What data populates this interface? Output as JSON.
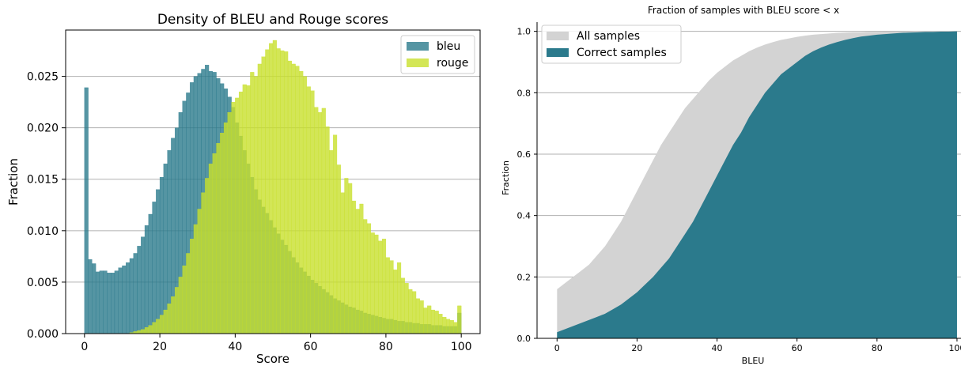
{
  "chart_data": [
    {
      "type": "bar",
      "title": "Density of BLEU and Rouge scores",
      "xlabel": "Score",
      "ylabel": "Fraction",
      "xlim": [
        -5,
        105
      ],
      "ylim": [
        0,
        0.0295
      ],
      "xticks": [
        0,
        20,
        40,
        60,
        80,
        100
      ],
      "yticks": [
        0.0,
        0.005,
        0.01,
        0.015,
        0.02,
        0.025
      ],
      "ytick_labels": [
        "0.000",
        "0.005",
        "0.010",
        "0.015",
        "0.020",
        "0.025"
      ],
      "grid": "horizontal",
      "legend_position": "top-right",
      "bin_width": 1,
      "series": [
        {
          "name": "bleu",
          "color": "#2b7a8c",
          "bin_start": 0,
          "values": [
            0.0239,
            0.0072,
            0.0068,
            0.006,
            0.0061,
            0.0061,
            0.0059,
            0.0059,
            0.0061,
            0.0064,
            0.0066,
            0.0069,
            0.0073,
            0.0078,
            0.0085,
            0.0094,
            0.0105,
            0.0116,
            0.0128,
            0.014,
            0.0152,
            0.0165,
            0.0178,
            0.019,
            0.02,
            0.0215,
            0.0226,
            0.0234,
            0.0244,
            0.025,
            0.0253,
            0.0257,
            0.0261,
            0.0255,
            0.0254,
            0.0248,
            0.0243,
            0.0238,
            0.023,
            0.022,
            0.0205,
            0.0192,
            0.0178,
            0.0165,
            0.0152,
            0.014,
            0.013,
            0.0123,
            0.0117,
            0.011,
            0.0103,
            0.0097,
            0.0091,
            0.0086,
            0.008,
            0.0074,
            0.0069,
            0.0064,
            0.006,
            0.0056,
            0.0052,
            0.0049,
            0.0046,
            0.0043,
            0.004,
            0.0037,
            0.0034,
            0.0032,
            0.003,
            0.0028,
            0.0026,
            0.0025,
            0.0023,
            0.0022,
            0.002,
            0.0019,
            0.0018,
            0.0017,
            0.0016,
            0.0015,
            0.0014,
            0.0014,
            0.0013,
            0.0012,
            0.0012,
            0.0011,
            0.0011,
            0.001,
            0.001,
            0.0009,
            0.0009,
            0.0009,
            0.0008,
            0.0008,
            0.0008,
            0.0007,
            0.0007,
            0.0007,
            0.0007,
            0.002
          ]
        },
        {
          "name": "rouge",
          "color": "#c8e02c",
          "bin_start": 0,
          "values": [
            0.0,
            0.0,
            0.0,
            0.0,
            0.0,
            0.0,
            0.0,
            0.0,
            0.0,
            0.0,
            0.0,
            0.0,
            0.0001,
            0.0002,
            0.0003,
            0.0004,
            0.0006,
            0.0008,
            0.0011,
            0.0014,
            0.0018,
            0.0023,
            0.0029,
            0.0036,
            0.0045,
            0.0055,
            0.0066,
            0.0078,
            0.0092,
            0.0106,
            0.0121,
            0.0137,
            0.0151,
            0.0165,
            0.0175,
            0.0185,
            0.0195,
            0.0205,
            0.0215,
            0.0225,
            0.0229,
            0.0235,
            0.0242,
            0.0241,
            0.0254,
            0.025,
            0.0262,
            0.0269,
            0.0276,
            0.0282,
            0.0285,
            0.0277,
            0.0275,
            0.0274,
            0.0265,
            0.0262,
            0.026,
            0.0255,
            0.025,
            0.024,
            0.0236,
            0.022,
            0.0215,
            0.0219,
            0.0201,
            0.0178,
            0.0193,
            0.0164,
            0.0137,
            0.0151,
            0.0146,
            0.0129,
            0.0121,
            0.0126,
            0.0111,
            0.0107,
            0.0098,
            0.0096,
            0.009,
            0.0092,
            0.0074,
            0.0071,
            0.0062,
            0.0069,
            0.0054,
            0.0049,
            0.0043,
            0.0041,
            0.0034,
            0.0032,
            0.0025,
            0.0027,
            0.0023,
            0.0022,
            0.0019,
            0.0016,
            0.0014,
            0.0013,
            0.0011,
            0.0027
          ]
        }
      ]
    },
    {
      "type": "area",
      "title": "Fraction of samples with BLEU score < x",
      "xlabel": "BLEU",
      "ylabel": "Fraction",
      "xlim": [
        -5,
        101
      ],
      "ylim": [
        0,
        1.03
      ],
      "xticks": [
        0,
        20,
        40,
        60,
        80,
        100
      ],
      "yticks": [
        0.0,
        0.2,
        0.4,
        0.6,
        0.8,
        1.0
      ],
      "ytick_labels": [
        "0.0",
        "0.2",
        "0.4",
        "0.6",
        "0.8",
        "1.0"
      ],
      "grid": "horizontal",
      "legend_position": "top-left",
      "series": [
        {
          "name": "All samples",
          "color": "#d3d3d3",
          "x": [
            0,
            2,
            4,
            6,
            8,
            10,
            12,
            14,
            16,
            18,
            20,
            22,
            24,
            26,
            28,
            30,
            32,
            34,
            36,
            38,
            40,
            42,
            44,
            46,
            48,
            50,
            52,
            54,
            56,
            58,
            60,
            62,
            64,
            66,
            68,
            70,
            72,
            74,
            76,
            78,
            80,
            82,
            84,
            86,
            88,
            90,
            92,
            94,
            96,
            98,
            100
          ],
          "values": [
            0.16,
            0.18,
            0.2,
            0.22,
            0.24,
            0.27,
            0.3,
            0.34,
            0.38,
            0.43,
            0.48,
            0.53,
            0.58,
            0.63,
            0.67,
            0.71,
            0.75,
            0.78,
            0.81,
            0.84,
            0.865,
            0.885,
            0.905,
            0.92,
            0.935,
            0.947,
            0.957,
            0.965,
            0.972,
            0.977,
            0.982,
            0.986,
            0.989,
            0.991,
            0.993,
            0.995,
            0.996,
            0.997,
            0.997,
            0.998,
            0.998,
            0.999,
            0.999,
            0.999,
            0.999,
            1.0,
            1.0,
            1.0,
            1.0,
            1.0,
            1.0
          ]
        },
        {
          "name": "Correct samples",
          "color": "#2b7a8c",
          "x": [
            0,
            2,
            4,
            6,
            8,
            10,
            12,
            14,
            16,
            18,
            20,
            22,
            24,
            26,
            28,
            30,
            32,
            34,
            36,
            38,
            40,
            42,
            44,
            46,
            48,
            50,
            52,
            54,
            56,
            58,
            60,
            62,
            64,
            66,
            68,
            70,
            72,
            74,
            76,
            78,
            80,
            82,
            84,
            86,
            88,
            90,
            92,
            94,
            96,
            98,
            100
          ],
          "values": [
            0.02,
            0.03,
            0.04,
            0.05,
            0.06,
            0.07,
            0.08,
            0.095,
            0.11,
            0.13,
            0.15,
            0.175,
            0.2,
            0.23,
            0.26,
            0.3,
            0.34,
            0.38,
            0.43,
            0.48,
            0.53,
            0.58,
            0.63,
            0.67,
            0.72,
            0.76,
            0.8,
            0.83,
            0.86,
            0.88,
            0.9,
            0.92,
            0.935,
            0.947,
            0.957,
            0.965,
            0.972,
            0.978,
            0.983,
            0.986,
            0.989,
            0.991,
            0.993,
            0.995,
            0.996,
            0.997,
            0.998,
            0.998,
            0.999,
            0.999,
            1.0
          ]
        }
      ]
    }
  ]
}
